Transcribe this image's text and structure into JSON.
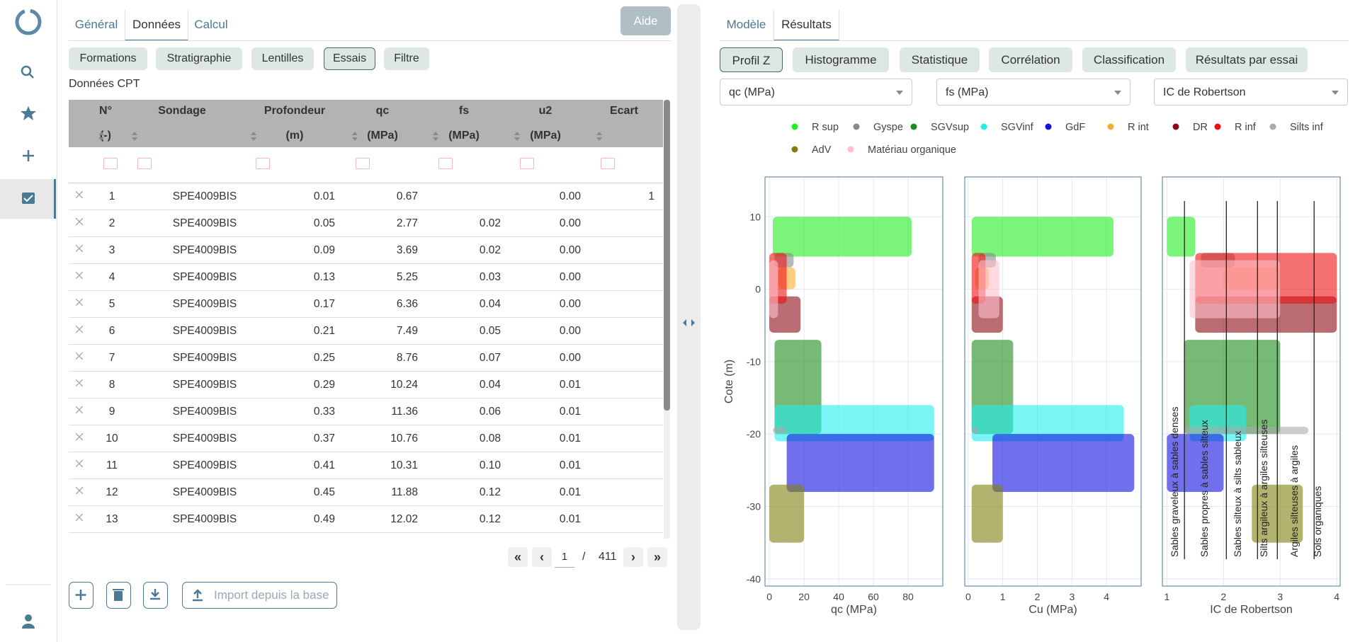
{
  "left": {
    "tabs": [
      "Général",
      "Données",
      "Calcul"
    ],
    "active_tab": 1,
    "help": "Aide",
    "subtabs": [
      "Formations",
      "Stratigraphie",
      "Lentilles",
      "Essais",
      "Filtre"
    ],
    "active_subtab": 3,
    "section": "Données CPT",
    "table": {
      "columns": [
        {
          "name": "N°",
          "unit": "(-)"
        },
        {
          "name": "Sondage"
        },
        {
          "name": "Profondeur",
          "unit": "(m)"
        },
        {
          "name": "qc",
          "unit": "(MPa)"
        },
        {
          "name": "fs",
          "unit": "(MPa)"
        },
        {
          "name": "u2",
          "unit": "(MPa)"
        },
        {
          "name": "Ecart"
        }
      ],
      "rows": [
        [
          "1",
          "SPE4009BIS",
          "0.01",
          "0.67",
          null,
          "0.00",
          "1"
        ],
        [
          "2",
          "SPE4009BIS",
          "0.05",
          "2.77",
          "0.02",
          "0.00",
          null
        ],
        [
          "3",
          "SPE4009BIS",
          "0.09",
          "3.69",
          "0.02",
          "0.00",
          null
        ],
        [
          "4",
          "SPE4009BIS",
          "0.13",
          "5.25",
          "0.03",
          "0.00",
          null
        ],
        [
          "5",
          "SPE4009BIS",
          "0.17",
          "6.36",
          "0.04",
          "0.00",
          null
        ],
        [
          "6",
          "SPE4009BIS",
          "0.21",
          "7.49",
          "0.05",
          "0.00",
          null
        ],
        [
          "7",
          "SPE4009BIS",
          "0.25",
          "8.76",
          "0.07",
          "0.00",
          null
        ],
        [
          "8",
          "SPE4009BIS",
          "0.29",
          "10.24",
          "0.04",
          "0.01",
          null
        ],
        [
          "9",
          "SPE4009BIS",
          "0.33",
          "11.36",
          "0.06",
          "0.01",
          null
        ],
        [
          "10",
          "SPE4009BIS",
          "0.37",
          "10.76",
          "0.08",
          "0.01",
          null
        ],
        [
          "11",
          "SPE4009BIS",
          "0.41",
          "10.31",
          "0.10",
          "0.01",
          null
        ],
        [
          "12",
          "SPE4009BIS",
          "0.45",
          "11.88",
          "0.12",
          "0.01",
          null
        ],
        [
          "13",
          "SPE4009BIS",
          "0.49",
          "12.02",
          "0.12",
          "0.01",
          null
        ]
      ]
    },
    "pagination": {
      "page": 1,
      "separator": "/",
      "pages": 411
    },
    "import_button": "Import depuis la base"
  },
  "right": {
    "tabs": [
      "Modèle",
      "Résultats"
    ],
    "active_tab": 1,
    "views": [
      "Profil Z",
      "Histogramme",
      "Statistique",
      "Corrélation",
      "Classification",
      "Résultats par essai"
    ],
    "active_view": 0,
    "selects": [
      "qc (MPa)",
      "fs (MPa)",
      "IC de Robertson"
    ]
  },
  "chart_data": {
    "type": "scatter",
    "y_label": "Cote (m)",
    "ylim": [
      -41,
      15.5
    ],
    "yticks": [
      10,
      0,
      -10,
      -20,
      -30,
      -40
    ],
    "grid": true,
    "panels": [
      {
        "x_label": "qc (MPa)",
        "xlim": [
          -2.5,
          100
        ],
        "xticks": [
          0,
          20,
          40,
          60,
          80
        ]
      },
      {
        "x_label": "Cu (MPa)",
        "xlim": [
          -0.1,
          5
        ],
        "xticks": [
          0,
          1,
          2,
          3,
          4
        ]
      },
      {
        "x_label": "IC de Robertson",
        "xlim": [
          0.92,
          4.06
        ],
        "xticks": [
          1,
          2,
          3,
          4
        ]
      }
    ],
    "series": [
      {
        "name": "R sup",
        "color": "#22ee22",
        "z": [
          10,
          4.5
        ],
        "x_ranges": [
          [
            2,
            82
          ],
          [
            0.1,
            4.2
          ],
          [
            1.0,
            1.5
          ]
        ]
      },
      {
        "name": "Gyspe",
        "color": "#888888",
        "z": [
          5,
          3
        ],
        "x_ranges": [
          [
            3,
            14
          ],
          [
            0.3,
            0.8
          ],
          [
            1.6,
            2.2
          ]
        ]
      },
      {
        "name": "SGVsup",
        "color": "#1a8c1a",
        "z": [
          -7,
          -20
        ],
        "x_ranges": [
          [
            3,
            30
          ],
          [
            0.1,
            1.3
          ],
          [
            1.3,
            3.0
          ]
        ]
      },
      {
        "name": "SGVinf",
        "color": "#22eeee",
        "z": [
          -16,
          -21
        ],
        "x_ranges": [
          [
            3,
            95
          ],
          [
            0.1,
            4.5
          ],
          [
            1.4,
            2.4
          ]
        ]
      },
      {
        "name": "GdF",
        "color": "#1010e0",
        "z": [
          -20,
          -28
        ],
        "x_ranges": [
          [
            10,
            95
          ],
          [
            0.7,
            4.8
          ],
          [
            1.0,
            2.0
          ]
        ]
      },
      {
        "name": "R int",
        "color": "#ffaa33",
        "z": [
          3,
          0
        ],
        "x_ranges": [
          [
            5,
            15
          ],
          [
            0.2,
            0.6
          ],
          [
            2,
            3
          ]
        ]
      },
      {
        "name": "DR",
        "color": "#8b0a14",
        "z": [
          -1,
          -6
        ],
        "x_ranges": [
          [
            0,
            18
          ],
          [
            0.1,
            1.0
          ],
          [
            1.5,
            4.0
          ]
        ]
      },
      {
        "name": "R inf",
        "color": "#ee1111",
        "z": [
          5,
          -2
        ],
        "x_ranges": [
          [
            0,
            10
          ],
          [
            0.1,
            0.5
          ],
          [
            1.5,
            4.0
          ]
        ]
      },
      {
        "name": "Silts inf",
        "color": "#aaaaaa",
        "z": [
          -19,
          -20
        ],
        "x_ranges": [
          [
            2,
            10
          ],
          [
            0.1,
            0.3
          ],
          [
            1.3,
            3.5
          ]
        ]
      },
      {
        "name": "AdV",
        "color": "#808010",
        "z": [
          -27,
          -35
        ],
        "x_ranges": [
          [
            0,
            20
          ],
          [
            0.1,
            1.0
          ],
          [
            2.5,
            3.4
          ]
        ]
      },
      {
        "name": "Matériau organique",
        "color": "#ffc0cb",
        "z": [
          4,
          -4
        ],
        "x_ranges": [
          [
            0,
            5
          ],
          [
            0.3,
            0.9
          ],
          [
            1.4,
            3.0
          ]
        ]
      }
    ],
    "zones": {
      "boundaries": [
        1.31,
        2.05,
        2.6,
        2.95,
        3.6
      ],
      "labels": [
        "Sables graveleux à sables denses",
        "Sables propres à sables silteux",
        "Sables silteux à silts sableux",
        "Silts argileux à argiles silteuses",
        "Argiles silteuses à argiles",
        "Sols organiques"
      ]
    }
  }
}
